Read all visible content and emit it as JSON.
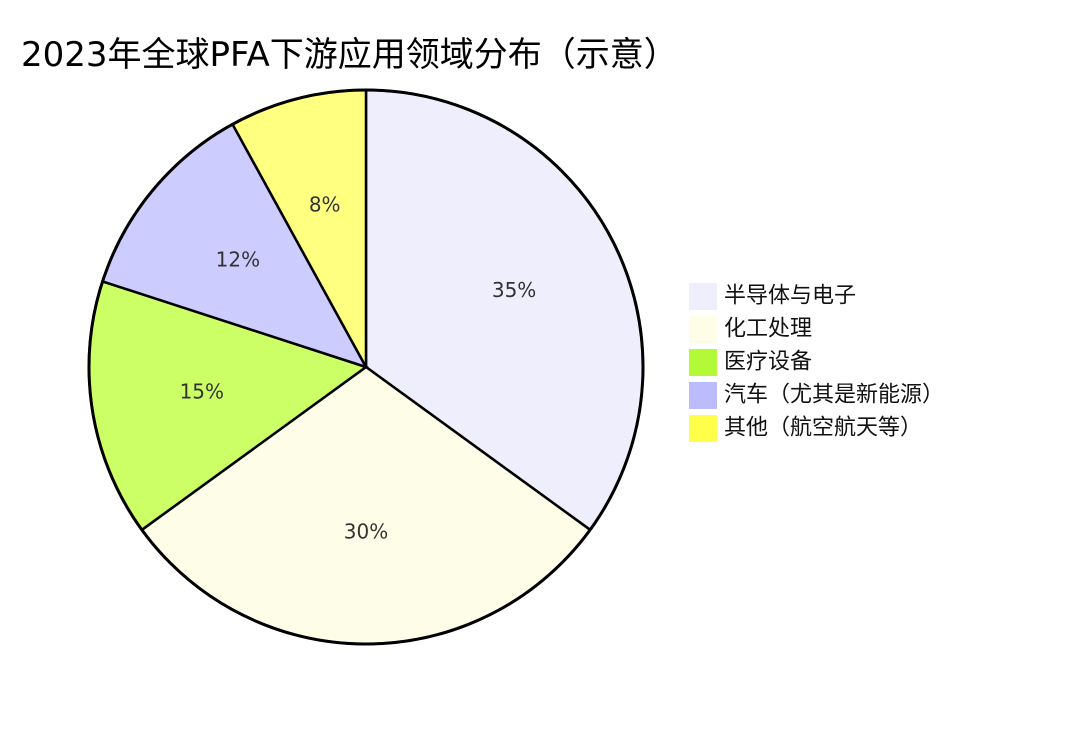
{
  "chart_data": {
    "type": "pie",
    "title": "2023年全球PFA下游应用领域分布（示意）",
    "categories": [
      "半导体与电子",
      "化工处理",
      "医疗设备",
      "汽车（尤其是新能源）",
      "其他（航空航天等）"
    ],
    "values": [
      35,
      30,
      15,
      12,
      8
    ],
    "labels": [
      "35%",
      "30%",
      "15%",
      "12%",
      "8%"
    ],
    "colors": [
      "#eeeefc",
      "#fefee8",
      "#ccff66",
      "#ccccff",
      "#ffff80"
    ],
    "legend_colors": [
      "#eeeefc",
      "#fefee8",
      "#b2fa38",
      "#bcbcfc",
      "#ffff4a"
    ],
    "start_angle_deg": 90,
    "direction": "clockwise",
    "legend_position": "right"
  }
}
